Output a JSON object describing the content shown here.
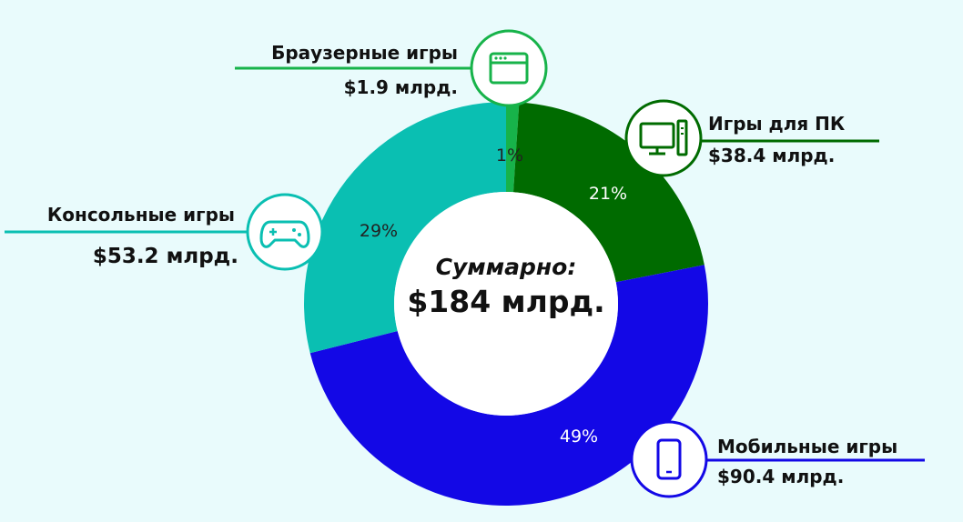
{
  "chart_data": {
    "type": "donut",
    "total": {
      "label": "Суммарно:",
      "value": "$184 млрд."
    },
    "slices": [
      {
        "id": "browser",
        "name": "Браузерные игры",
        "amount": 1.9,
        "amount_label": "$1.9 млрд.",
        "percent": 1,
        "percent_label": "1%",
        "color": "#17b34a",
        "icon": "browser-window-icon"
      },
      {
        "id": "pc",
        "name": "Игры для ПК",
        "amount": 38.4,
        "amount_label": "$38.4 млрд.",
        "percent": 21,
        "percent_label": "21%",
        "color": "#006b00",
        "icon": "desktop-computer-icon"
      },
      {
        "id": "mobile",
        "name": "Мобильные игры",
        "amount": 90.4,
        "amount_label": "$90.4 млрд.",
        "percent": 49,
        "percent_label": "49%",
        "color": "#1308e6",
        "icon": "smartphone-icon"
      },
      {
        "id": "console",
        "name": "Консольные игры",
        "amount": 53.2,
        "amount_label": "$53.2 млрд.",
        "percent": 29,
        "percent_label": "29%",
        "color": "#0abfb2",
        "icon": "gamepad-icon"
      }
    ]
  }
}
